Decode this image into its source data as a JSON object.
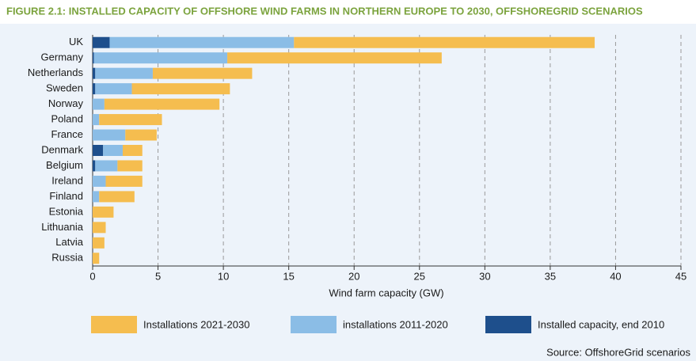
{
  "chart_data": {
    "type": "stacked_barh",
    "title": "FIGURE 2.1: INSTALLED CAPACITY OF OFFSHORE WIND FARMS IN NORTHERN EUROPE TO 2030, OFFSHOREGRID SCENARIOS",
    "xlabel": "Wind farm capacity (GW)",
    "source": "Source: OffshoreGrid scenarios",
    "categories": [
      "UK",
      "Germany",
      "Netherlands",
      "Sweden",
      "Norway",
      "Poland",
      "France",
      "Denmark",
      "Belgium",
      "Ireland",
      "Finland",
      "Estonia",
      "Lithuania",
      "Latvia",
      "Russia"
    ],
    "series": [
      {
        "name": "Installations 2021-2030",
        "color": "#f5bd4f",
        "values": [
          23.0,
          16.4,
          7.6,
          7.5,
          8.8,
          4.8,
          2.4,
          1.5,
          1.9,
          2.8,
          2.7,
          1.6,
          1.0,
          0.9,
          0.5
        ]
      },
      {
        "name": "installations 2011-2020",
        "color": "#8bbde6",
        "values": [
          14.1,
          10.2,
          4.4,
          2.8,
          0.9,
          0.5,
          2.5,
          1.5,
          1.7,
          1.0,
          0.5,
          0,
          0,
          0,
          0
        ]
      },
      {
        "name": "Installed capacity, end 2010",
        "color": "#1e4f8c",
        "values": [
          1.3,
          0.1,
          0.2,
          0.2,
          0,
          0,
          0,
          0.8,
          0.2,
          0,
          0,
          0,
          0,
          0,
          0
        ]
      }
    ],
    "xlim": [
      0,
      45
    ],
    "xticks": [
      0,
      5,
      10,
      15,
      20,
      25,
      30,
      35,
      40,
      45
    ],
    "grid": true
  }
}
